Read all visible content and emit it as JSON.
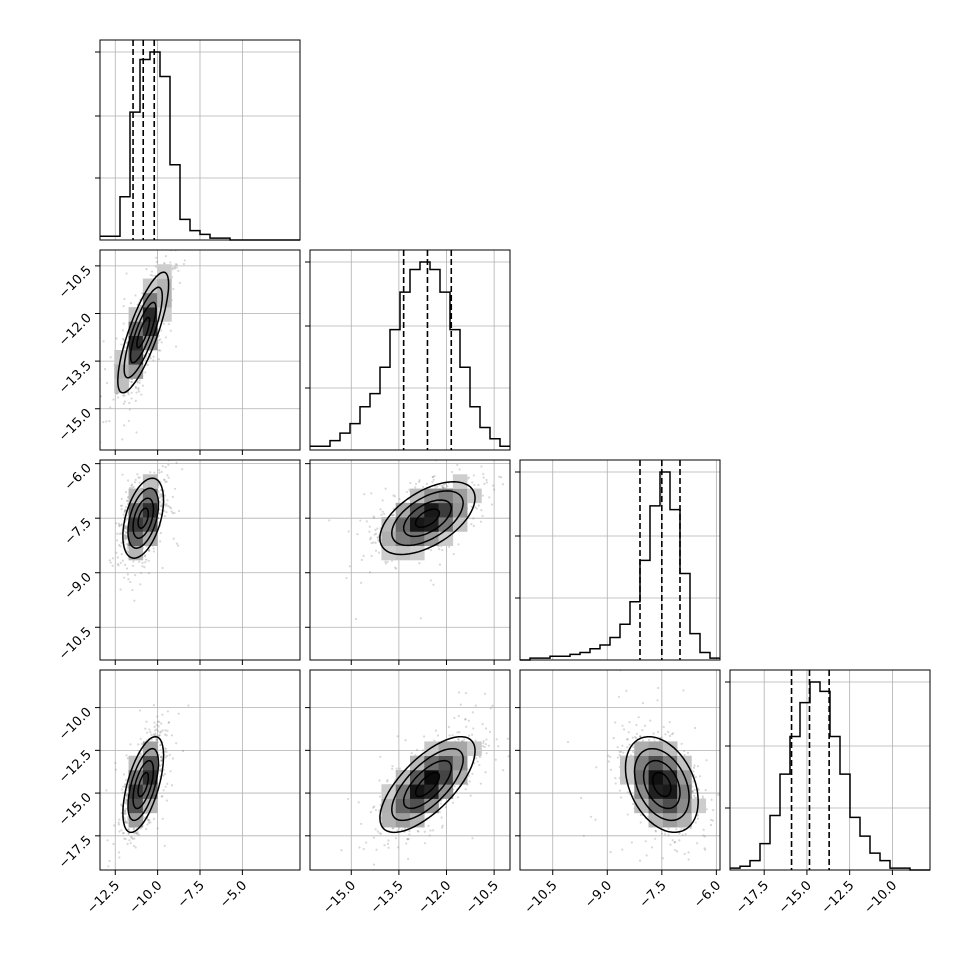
{
  "chart_data": {
    "type": "corner",
    "parameters": [
      {
        "range": [
          -13.4,
          -1.6
        ],
        "ticks": [
          -12.5,
          -10.0,
          -7.5,
          -5.0
        ],
        "tick_labels": [
          "−12.5",
          "−10.0",
          "−7.5",
          "−5.0"
        ],
        "grid": [
          -12.5,
          -10.0,
          -7.5,
          -5.0
        ]
      },
      {
        "range": [
          -16.3,
          -10.0
        ],
        "ticks": [
          -15.0,
          -13.5,
          -12.0,
          -10.5
        ],
        "tick_labels": [
          "−15.0",
          "−13.5",
          "−12.0",
          "−10.5"
        ],
        "grid": [
          -15.0,
          -13.5,
          -12.0,
          -10.5
        ]
      },
      {
        "range": [
          -11.4,
          -5.9
        ],
        "ticks": [
          -10.5,
          -9.0,
          -7.5,
          -6.0
        ],
        "tick_labels": [
          "−10.5",
          "−9.0",
          "−7.5",
          "−6.0"
        ],
        "grid": [
          -10.5,
          -9.0,
          -7.5,
          -6.0
        ]
      },
      {
        "range": [
          -19.5,
          -7.8
        ],
        "ticks": [
          -17.5,
          -15.0,
          -12.5,
          -10.0
        ],
        "tick_labels": [
          "−17.5",
          "−15.0",
          "−12.5",
          "−10.0"
        ],
        "grid": [
          -17.5,
          -15.0,
          -12.5,
          -10.0
        ]
      }
    ],
    "quantiles": [
      [
        -11.45,
        -10.85,
        -10.2
      ],
      [
        -13.35,
        -12.6,
        -11.85
      ],
      [
        -8.1,
        -7.5,
        -7.0
      ],
      [
        -15.9,
        -14.85,
        -13.7
      ]
    ],
    "histograms": [
      {
        "bin_start": -13.4,
        "bin_width": 0.59,
        "counts": [
          0.02,
          0.02,
          0.23,
          0.68,
          0.96,
          1.0,
          0.87,
          0.4,
          0.11,
          0.05,
          0.03,
          0.01,
          0.01,
          0,
          0,
          0,
          0,
          0,
          0,
          0
        ]
      },
      {
        "bin_start": -16.3,
        "bin_width": 0.315,
        "counts": [
          0.02,
          0.02,
          0.05,
          0.09,
          0.14,
          0.23,
          0.3,
          0.44,
          0.64,
          0.84,
          0.96,
          1.0,
          0.96,
          0.84,
          0.64,
          0.44,
          0.23,
          0.12,
          0.06,
          0.02
        ]
      },
      {
        "bin_start": -11.4,
        "bin_width": 0.275,
        "counts": [
          0,
          0.01,
          0.01,
          0.02,
          0.02,
          0.03,
          0.04,
          0.06,
          0.08,
          0.12,
          0.19,
          0.31,
          0.53,
          0.82,
          1.0,
          0.8,
          0.46,
          0.14,
          0.04,
          0.01
        ]
      },
      {
        "bin_start": -19.5,
        "bin_width": 0.585,
        "counts": [
          0.01,
          0.02,
          0.05,
          0.14,
          0.29,
          0.51,
          0.71,
          0.89,
          1.0,
          0.95,
          0.71,
          0.51,
          0.28,
          0.18,
          0.09,
          0.05,
          0.01,
          0.01,
          0,
          0
        ]
      }
    ],
    "pairs": [
      {
        "x": 0,
        "y": 1,
        "mean": [
          -10.85,
          -12.6
        ],
        "sd": [
          0.75,
          0.95
        ],
        "rho": 0.8
      },
      {
        "x": 0,
        "y": 2,
        "mean": [
          -10.85,
          -7.5
        ],
        "sd": [
          0.6,
          0.55
        ],
        "rho": 0.45
      },
      {
        "x": 1,
        "y": 2,
        "mean": [
          -12.6,
          -7.5
        ],
        "sd": [
          0.75,
          0.5
        ],
        "rho": 0.55
      },
      {
        "x": 0,
        "y": 3,
        "mean": [
          -10.85,
          -14.5
        ],
        "sd": [
          0.6,
          1.4
        ],
        "rho": 0.6
      },
      {
        "x": 1,
        "y": 3,
        "mean": [
          -12.6,
          -14.5
        ],
        "sd": [
          0.75,
          1.4
        ],
        "rho": 0.7
      },
      {
        "x": 2,
        "y": 3,
        "mean": [
          -7.5,
          -14.5
        ],
        "sd": [
          0.5,
          1.4
        ],
        "rho": -0.35
      }
    ],
    "xlabel": "",
    "ylabel": "",
    "title": ""
  },
  "colors": {
    "line": "#000000",
    "grid": "#b0b0b0",
    "points": "#7f7f7f"
  }
}
